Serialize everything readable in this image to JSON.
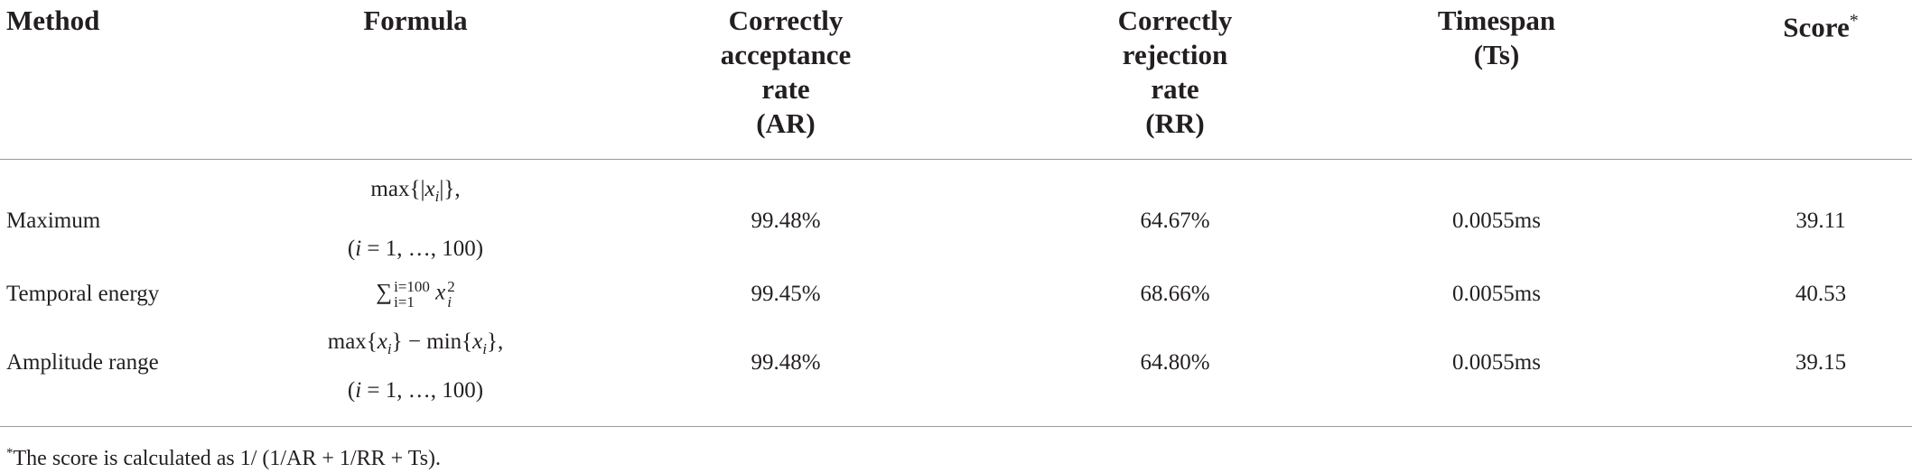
{
  "table": {
    "header": [
      {
        "lines": [
          "Method"
        ]
      },
      {
        "lines": [
          "Formula"
        ]
      },
      {
        "lines": [
          "Correctly",
          "acceptance",
          "rate",
          "(AR)"
        ]
      },
      {
        "lines": [
          "Correctly",
          "rejection",
          "rate",
          "(RR)"
        ]
      },
      {
        "lines": [
          "Timespan",
          "(Ts)"
        ]
      },
      {
        "lines": [
          "Score"
        ],
        "note": "*"
      }
    ],
    "rows": [
      {
        "method": "Maximum",
        "formula": [
          [
            "max{|",
            "x",
            "i",
            "|},"
          ],
          [
            "(",
            "i",
            " = 1, …, 100)"
          ]
        ],
        "ar": "99.48%",
        "rr": "64.67%",
        "ts": "0.0055ms",
        "score": "39.11"
      },
      {
        "method": "Temporal energy",
        "formula": [
          [
            "∑",
            "i=100",
            "i=1",
            "x",
            "2",
            "i"
          ]
        ],
        "ar": "99.45%",
        "rr": "68.66%",
        "ts": "0.0055ms",
        "score": "40.53"
      },
      {
        "method": "Amplitude range",
        "formula": [
          [
            "max{",
            "x",
            "i",
            "} − min{",
            "x",
            "i",
            "},"
          ],
          [
            "(",
            "i",
            " = 1, …, 100)"
          ]
        ],
        "ar": "99.48%",
        "rr": "64.80%",
        "ts": "0.0055ms",
        "score": "39.15"
      }
    ],
    "footnote": {
      "mark": "*",
      "text": "The score is calculated as 1/ (1/AR + 1/RR + Ts)."
    }
  }
}
